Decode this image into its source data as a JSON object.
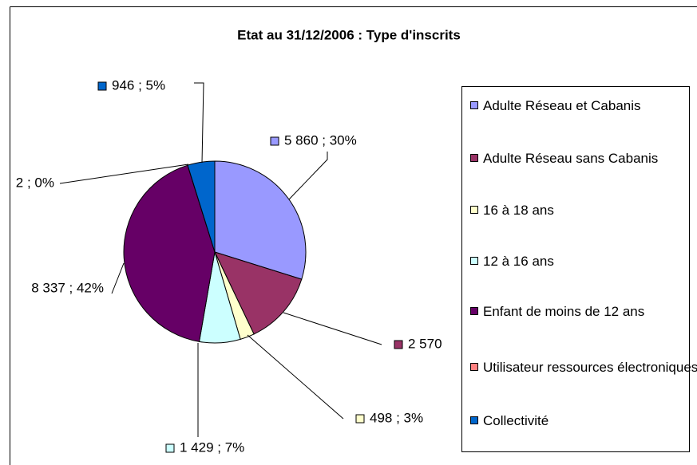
{
  "chart_data": {
    "type": "pie",
    "title": "Etat au 31/12/2006 : Type d'inscrits",
    "categories": [
      "Adulte Réseau et Cabanis",
      "Adulte Réseau sans Cabanis",
      "16 à 18 ans",
      "12 à 16 ans",
      "Enfant de moins de 12 ans",
      "Utilisateur ressources électroniques",
      "Collectivité"
    ],
    "values": [
      5860,
      2570,
      498,
      1429,
      8337,
      2,
      946
    ],
    "value_labels": [
      "5 860   ; 30%",
      "2 570",
      "498   ; 3%",
      "1 429   ; 7%",
      "8 337   ; 42%",
      "2   ; 0%",
      "946   ; 5%"
    ],
    "colors": [
      "#9999ff",
      "#993366",
      "#ffffcc",
      "#ccffff",
      "#660066",
      "#ff8080",
      "#0066cc"
    ],
    "legend": "right"
  }
}
